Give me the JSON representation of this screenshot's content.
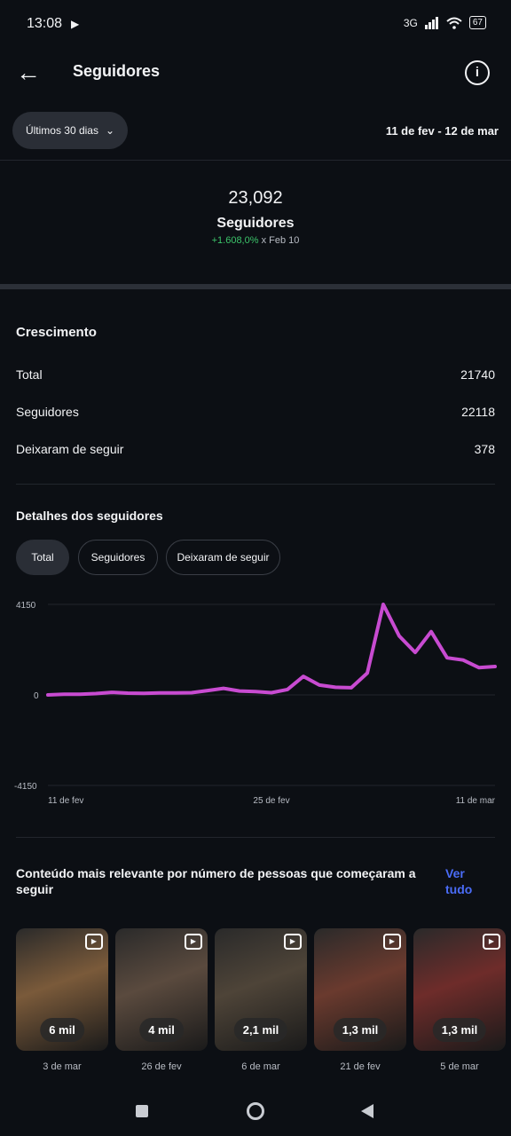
{
  "status_bar": {
    "time": "13:08",
    "network": "3G",
    "battery": "67"
  },
  "header": {
    "title": "Seguidores"
  },
  "filter": {
    "range_label": "Últimos 30 dias",
    "date_range": "11 de fev - 12 de mar"
  },
  "summary": {
    "count": "23,092",
    "label": "Seguidores",
    "change": "+1.608,0%",
    "change_suffix": "x Feb 10"
  },
  "growth": {
    "title": "Crescimento",
    "rows": [
      {
        "label": "Total",
        "value": "21740"
      },
      {
        "label": "Seguidores",
        "value": "22118"
      },
      {
        "label": "Deixaram de seguir",
        "value": "378"
      }
    ]
  },
  "details": {
    "title": "Detalhes dos seguidores",
    "chips": [
      "Total",
      "Seguidores",
      "Deixaram de seguir"
    ]
  },
  "chart_data": {
    "type": "line",
    "y_ticks": [
      "4150",
      "0",
      "-4150"
    ],
    "x_ticks": [
      "11 de fev",
      "25 de fev",
      "11 de mar"
    ],
    "ylim": [
      -4150,
      4150
    ],
    "series": [
      {
        "color": "#c84bd1",
        "values": [
          0,
          30,
          30,
          60,
          120,
          80,
          70,
          90,
          90,
          100,
          200,
          300,
          180,
          150,
          100,
          250,
          850,
          450,
          350,
          330,
          1000,
          4150,
          2700,
          1950,
          2900,
          1700,
          1600,
          1250,
          1300
        ]
      }
    ]
  },
  "content": {
    "title": "Conteúdo mais relevante por número de pessoas que começaram a seguir",
    "see_all": "Ver tudo",
    "items": [
      {
        "count": "6 mil",
        "date": "3 de mar",
        "tone": "#7a5a3a"
      },
      {
        "count": "4 mil",
        "date": "26 de fev",
        "tone": "#5a4a3e"
      },
      {
        "count": "2,1 mil",
        "date": "6 de mar",
        "tone": "#4e4438"
      },
      {
        "count": "1,3 mil",
        "date": "21 de fev",
        "tone": "#6a3a2e"
      },
      {
        "count": "1,3 mil",
        "date": "5 de mar",
        "tone": "#6e2c2a"
      }
    ]
  }
}
